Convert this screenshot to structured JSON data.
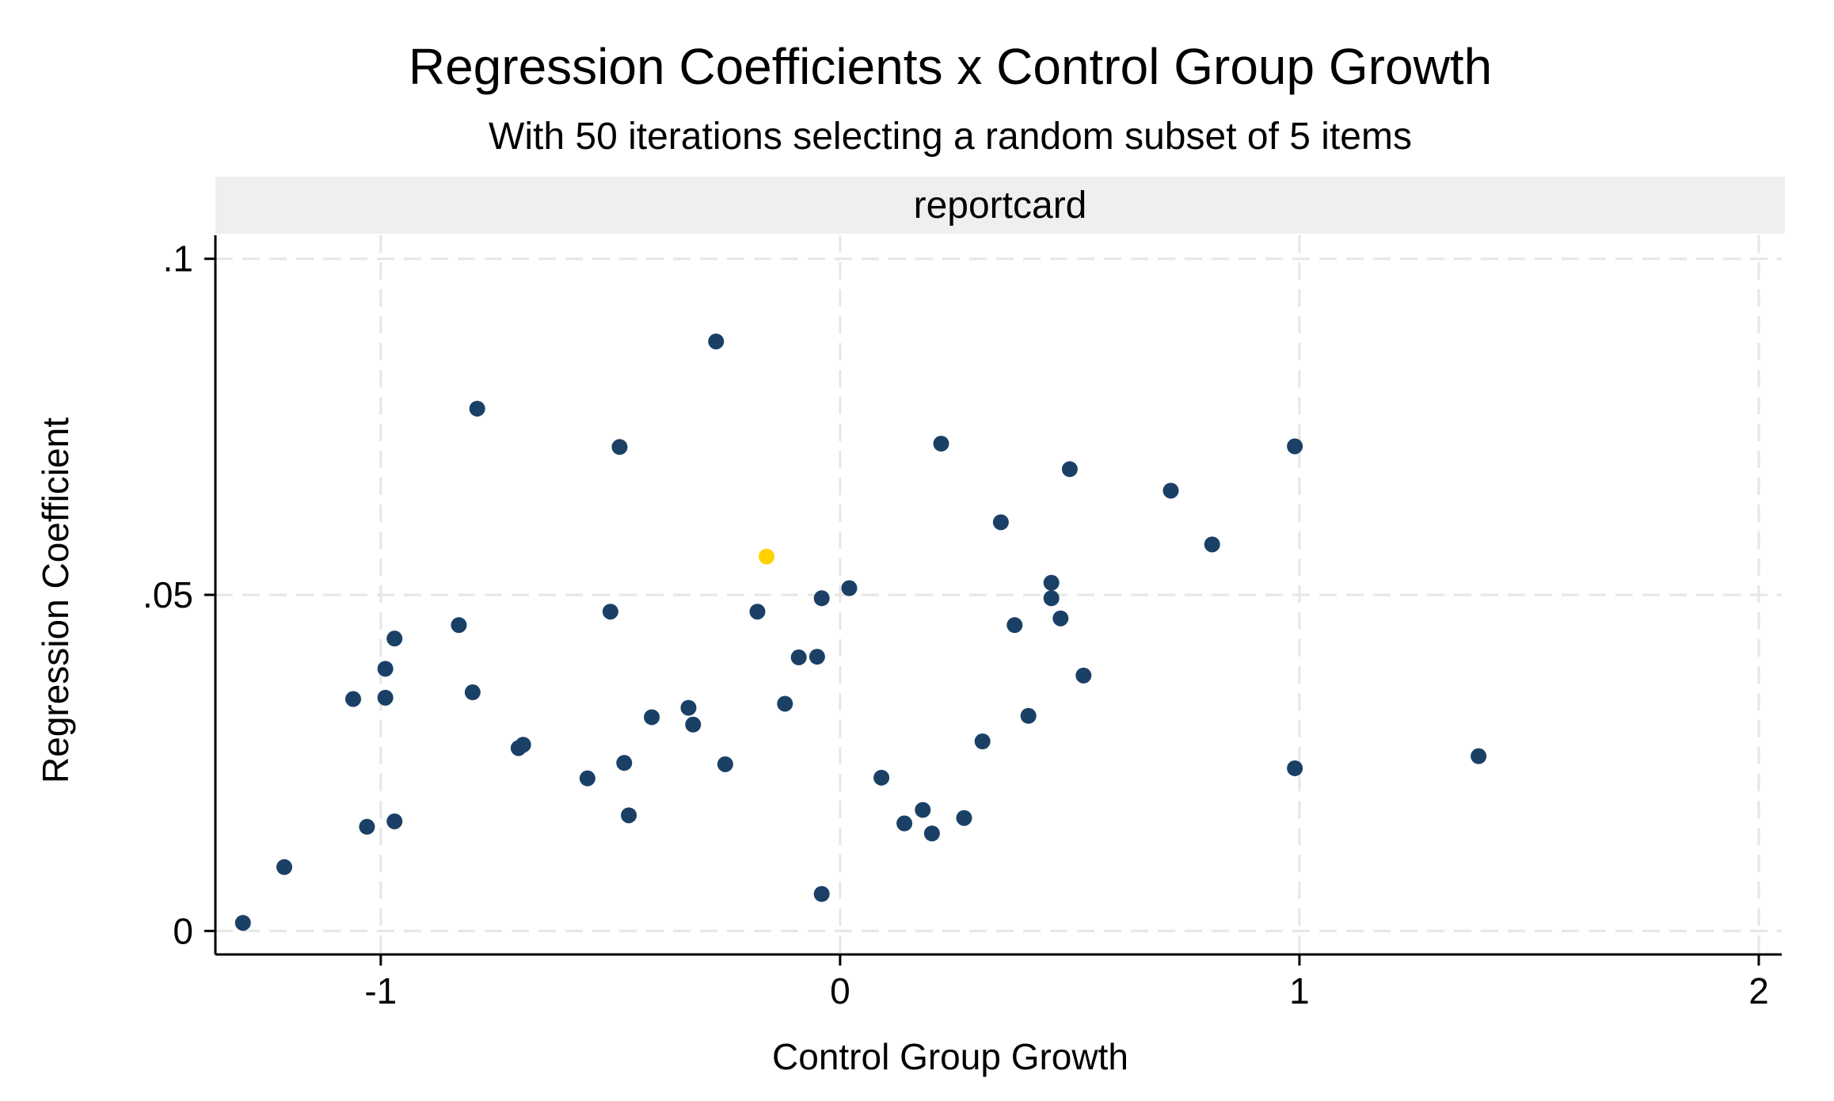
{
  "chart_data": {
    "type": "scatter",
    "title": "Regression Coefficients x Control Group Growth",
    "subtitle": "With 50 iterations selecting a random subset of 5 items",
    "panel_label": "reportcard",
    "xlabel": "Control Group Growth",
    "ylabel": "Regression Coefficient",
    "xlim": [
      -1.36,
      2.05
    ],
    "ylim": [
      -0.0035,
      0.1035
    ],
    "x_ticks": [
      -1,
      0,
      1,
      2
    ],
    "x_tick_labels": [
      "-1",
      "0",
      "1",
      "2"
    ],
    "y_ticks": [
      0,
      0.05,
      0.1
    ],
    "y_tick_labels": [
      "0",
      ".05",
      ".1"
    ],
    "grid": true,
    "colors": {
      "points": "#1a4066",
      "highlight": "#ffd200",
      "panel": "#efefef",
      "grid": "#e6e6e6"
    },
    "highlight": {
      "x": -0.16,
      "y": 0.0557
    },
    "points": [
      {
        "x": -1.3,
        "y": 0.0012
      },
      {
        "x": -1.21,
        "y": 0.0095
      },
      {
        "x": -1.06,
        "y": 0.0345
      },
      {
        "x": -1.03,
        "y": 0.0155
      },
      {
        "x": -0.99,
        "y": 0.039
      },
      {
        "x": -0.99,
        "y": 0.0347
      },
      {
        "x": -0.97,
        "y": 0.0435
      },
      {
        "x": -0.97,
        "y": 0.0163
      },
      {
        "x": -0.83,
        "y": 0.0455
      },
      {
        "x": -0.8,
        "y": 0.0355
      },
      {
        "x": -0.79,
        "y": 0.0777
      },
      {
        "x": -0.7,
        "y": 0.0272
      },
      {
        "x": -0.69,
        "y": 0.0277
      },
      {
        "x": -0.55,
        "y": 0.0227
      },
      {
        "x": -0.5,
        "y": 0.0475
      },
      {
        "x": -0.48,
        "y": 0.072
      },
      {
        "x": -0.47,
        "y": 0.025
      },
      {
        "x": -0.46,
        "y": 0.0172
      },
      {
        "x": -0.41,
        "y": 0.0318
      },
      {
        "x": -0.33,
        "y": 0.0332
      },
      {
        "x": -0.32,
        "y": 0.0307
      },
      {
        "x": -0.27,
        "y": 0.0877
      },
      {
        "x": -0.25,
        "y": 0.0248
      },
      {
        "x": -0.18,
        "y": 0.0475
      },
      {
        "x": -0.12,
        "y": 0.0338
      },
      {
        "x": -0.09,
        "y": 0.0407
      },
      {
        "x": -0.05,
        "y": 0.0408
      },
      {
        "x": -0.04,
        "y": 0.0495
      },
      {
        "x": -0.04,
        "y": 0.0055
      },
      {
        "x": 0.02,
        "y": 0.051
      },
      {
        "x": 0.09,
        "y": 0.0228
      },
      {
        "x": 0.14,
        "y": 0.016
      },
      {
        "x": 0.18,
        "y": 0.018
      },
      {
        "x": 0.2,
        "y": 0.0145
      },
      {
        "x": 0.22,
        "y": 0.0725
      },
      {
        "x": 0.27,
        "y": 0.0168
      },
      {
        "x": 0.31,
        "y": 0.0282
      },
      {
        "x": 0.35,
        "y": 0.0608
      },
      {
        "x": 0.38,
        "y": 0.0455
      },
      {
        "x": 0.41,
        "y": 0.032
      },
      {
        "x": 0.46,
        "y": 0.0518
      },
      {
        "x": 0.46,
        "y": 0.0495
      },
      {
        "x": 0.48,
        "y": 0.0465
      },
      {
        "x": 0.5,
        "y": 0.0687
      },
      {
        "x": 0.53,
        "y": 0.038
      },
      {
        "x": 0.72,
        "y": 0.0655
      },
      {
        "x": 0.81,
        "y": 0.0575
      },
      {
        "x": 0.99,
        "y": 0.0721
      },
      {
        "x": 0.99,
        "y": 0.0242
      },
      {
        "x": 1.39,
        "y": 0.026
      }
    ]
  }
}
